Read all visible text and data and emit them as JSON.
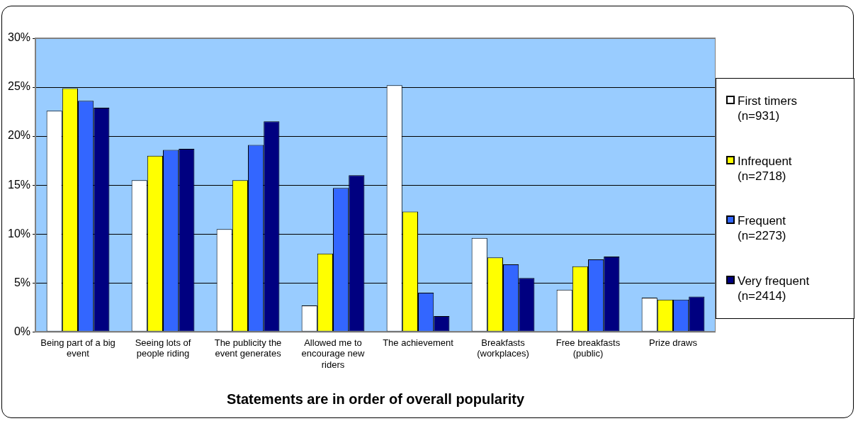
{
  "chart_data": {
    "type": "bar",
    "xlabel": "Statements are in order of overall popularity",
    "categories": [
      "Being part of a big event",
      "Seeing lots of people riding",
      "The publicity the event generates",
      "Allowed me to encourage new riders",
      "The achievement",
      "Breakfasts (workplaces)",
      "Free breakfasts (public)",
      "Prize draws"
    ],
    "series": [
      {
        "name": "First timers (n=931)",
        "color": "#ffffff",
        "values": [
          22.6,
          15.5,
          10.5,
          2.7,
          25.2,
          9.6,
          4.3,
          3.5
        ]
      },
      {
        "name": "Infrequent (n=2718)",
        "color": "#ffff00",
        "values": [
          24.9,
          18.0,
          15.5,
          8.0,
          12.3,
          7.6,
          6.7,
          3.3
        ]
      },
      {
        "name": "Frequent (n=2273)",
        "color": "#3366ff",
        "values": [
          23.6,
          18.6,
          19.1,
          14.7,
          4.0,
          6.9,
          7.4,
          3.3
        ]
      },
      {
        "name": "Very frequent (n=2414)",
        "color": "#000080",
        "values": [
          22.9,
          18.7,
          21.5,
          16.0,
          1.6,
          5.5,
          7.7,
          3.6
        ]
      }
    ],
    "ylim": [
      0,
      30
    ],
    "yticks": [
      {
        "value": 0,
        "label": "0%"
      },
      {
        "value": 5,
        "label": "5%"
      },
      {
        "value": 10,
        "label": "10%"
      },
      {
        "value": 15,
        "label": "15%"
      },
      {
        "value": 20,
        "label": "20%"
      },
      {
        "value": 25,
        "label": "25%"
      },
      {
        "value": 30,
        "label": "30%"
      }
    ],
    "grid": "y",
    "legend": "right"
  }
}
